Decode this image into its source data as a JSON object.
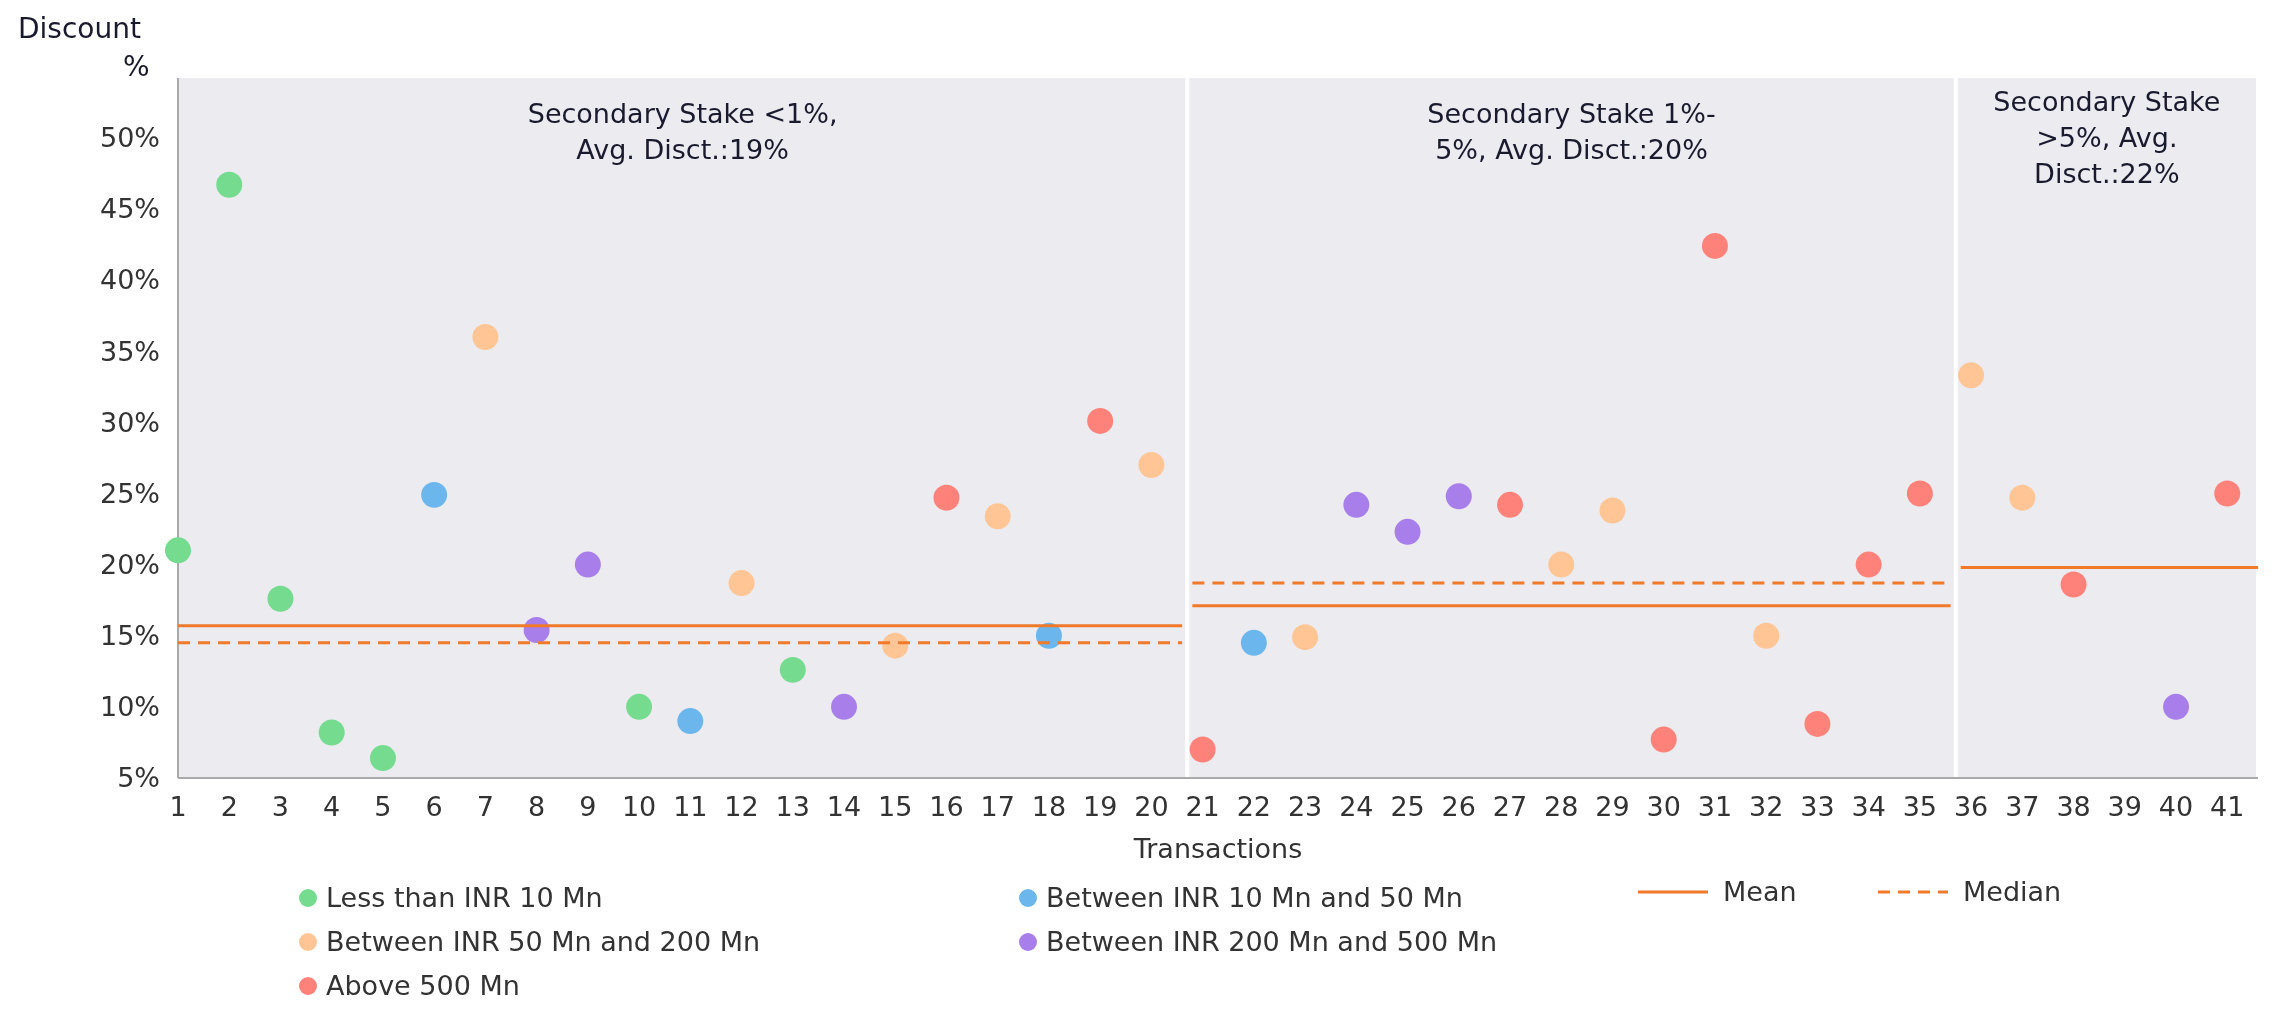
{
  "chart_data": {
    "type": "scatter",
    "ylabel": "Discount %",
    "xlabel": "Transactions",
    "xlim": [
      1,
      41.6
    ],
    "xticks": [
      1,
      2,
      3,
      4,
      5,
      6,
      7,
      8,
      9,
      10,
      11,
      12,
      13,
      14,
      15,
      16,
      17,
      18,
      19,
      20,
      21,
      22,
      23,
      24,
      25,
      26,
      27,
      28,
      29,
      30,
      31,
      32,
      33,
      34,
      35,
      36,
      37,
      38,
      39,
      40,
      41
    ],
    "ylim": [
      5,
      54.2
    ],
    "yticks": [
      {
        "value": 5,
        "label": "5%"
      },
      {
        "value": 10,
        "label": "10%"
      },
      {
        "value": 15,
        "label": "15%"
      },
      {
        "value": 20,
        "label": "20%"
      },
      {
        "value": 25,
        "label": "25%"
      },
      {
        "value": 30,
        "label": "30%"
      },
      {
        "value": 35,
        "label": "35%"
      },
      {
        "value": 40,
        "label": "40%"
      },
      {
        "value": 45,
        "label": "45%"
      },
      {
        "value": 50,
        "label": "50%"
      }
    ],
    "grid": false,
    "legend": "bottom",
    "marker": "circle",
    "bands": [
      {
        "axis": "x",
        "from": 1,
        "to": 20.7,
        "label": "Secondary Stake <1%,\nAvg. Disct.:19%",
        "color": "#ebebf0"
      },
      {
        "axis": "x",
        "from": 20.7,
        "to": 35.7,
        "label": "Secondary Stake 1%-\n5%, Avg. Disct.:20%",
        "color": "#ebebf0"
      },
      {
        "axis": "x",
        "from": 35.7,
        "to": 41.6,
        "label": "Secondary Stake\n>5%, Avg.\nDisct.:22%",
        "color": "#ebebf0"
      }
    ],
    "series": [
      {
        "name": "Less than INR 10 Mn",
        "color": "#75db8e",
        "x": [
          1,
          2,
          3,
          4,
          5,
          10,
          13
        ],
        "values": [
          21,
          46.7,
          17.6,
          8.2,
          6.4,
          10,
          12.6
        ]
      },
      {
        "name": "Between INR 10 Mn and 50 Mn",
        "color": "#6cb6ee",
        "x": [
          6,
          11,
          18,
          22
        ],
        "values": [
          24.9,
          9,
          15,
          14.5
        ]
      },
      {
        "name": "Between INR 50 Mn and 200 Mn",
        "color": "#ffc594",
        "x": [
          7,
          12,
          15,
          17,
          20,
          23,
          28,
          29,
          32,
          36,
          37
        ],
        "values": [
          36,
          18.7,
          14.3,
          23.4,
          27,
          14.9,
          20,
          23.8,
          15,
          33.3,
          24.7
        ]
      },
      {
        "name": "Between INR 200 Mn and 500 Mn",
        "color": "#a87eea",
        "x": [
          8,
          9,
          14,
          24,
          25,
          26,
          40
        ],
        "values": [
          15.4,
          20,
          10,
          24.2,
          22.3,
          24.8,
          10
        ]
      },
      {
        "name": "Above 500 Mn",
        "color": "#fe8279",
        "x": [
          16,
          19,
          21,
          27,
          30,
          31,
          33,
          34,
          35,
          38,
          41
        ],
        "values": [
          24.7,
          30.1,
          7,
          24.2,
          7.7,
          42.4,
          8.8,
          20,
          25,
          18.6,
          25
        ]
      },
      {
        "name": "Mean",
        "type": "line",
        "line_style": "solid",
        "marker": "none",
        "color": "#f07a2a",
        "x": [
          1,
          20.6,
          20.7,
          20.8,
          35.6,
          35.7,
          35.8,
          41.6
        ],
        "values": [
          15.7,
          15.7,
          null,
          17.1,
          17.1,
          null,
          19.8,
          19.8
        ]
      },
      {
        "name": "Median",
        "type": "line",
        "line_style": "dashed",
        "marker": "none",
        "color": "#f07a2a",
        "x": [
          1,
          20.6,
          20.7,
          20.8,
          35.6,
          35.7,
          35.8,
          41.6
        ],
        "values": [
          14.5,
          14.5,
          null,
          18.7,
          18.7,
          null,
          19.8,
          19.8
        ]
      }
    ]
  }
}
